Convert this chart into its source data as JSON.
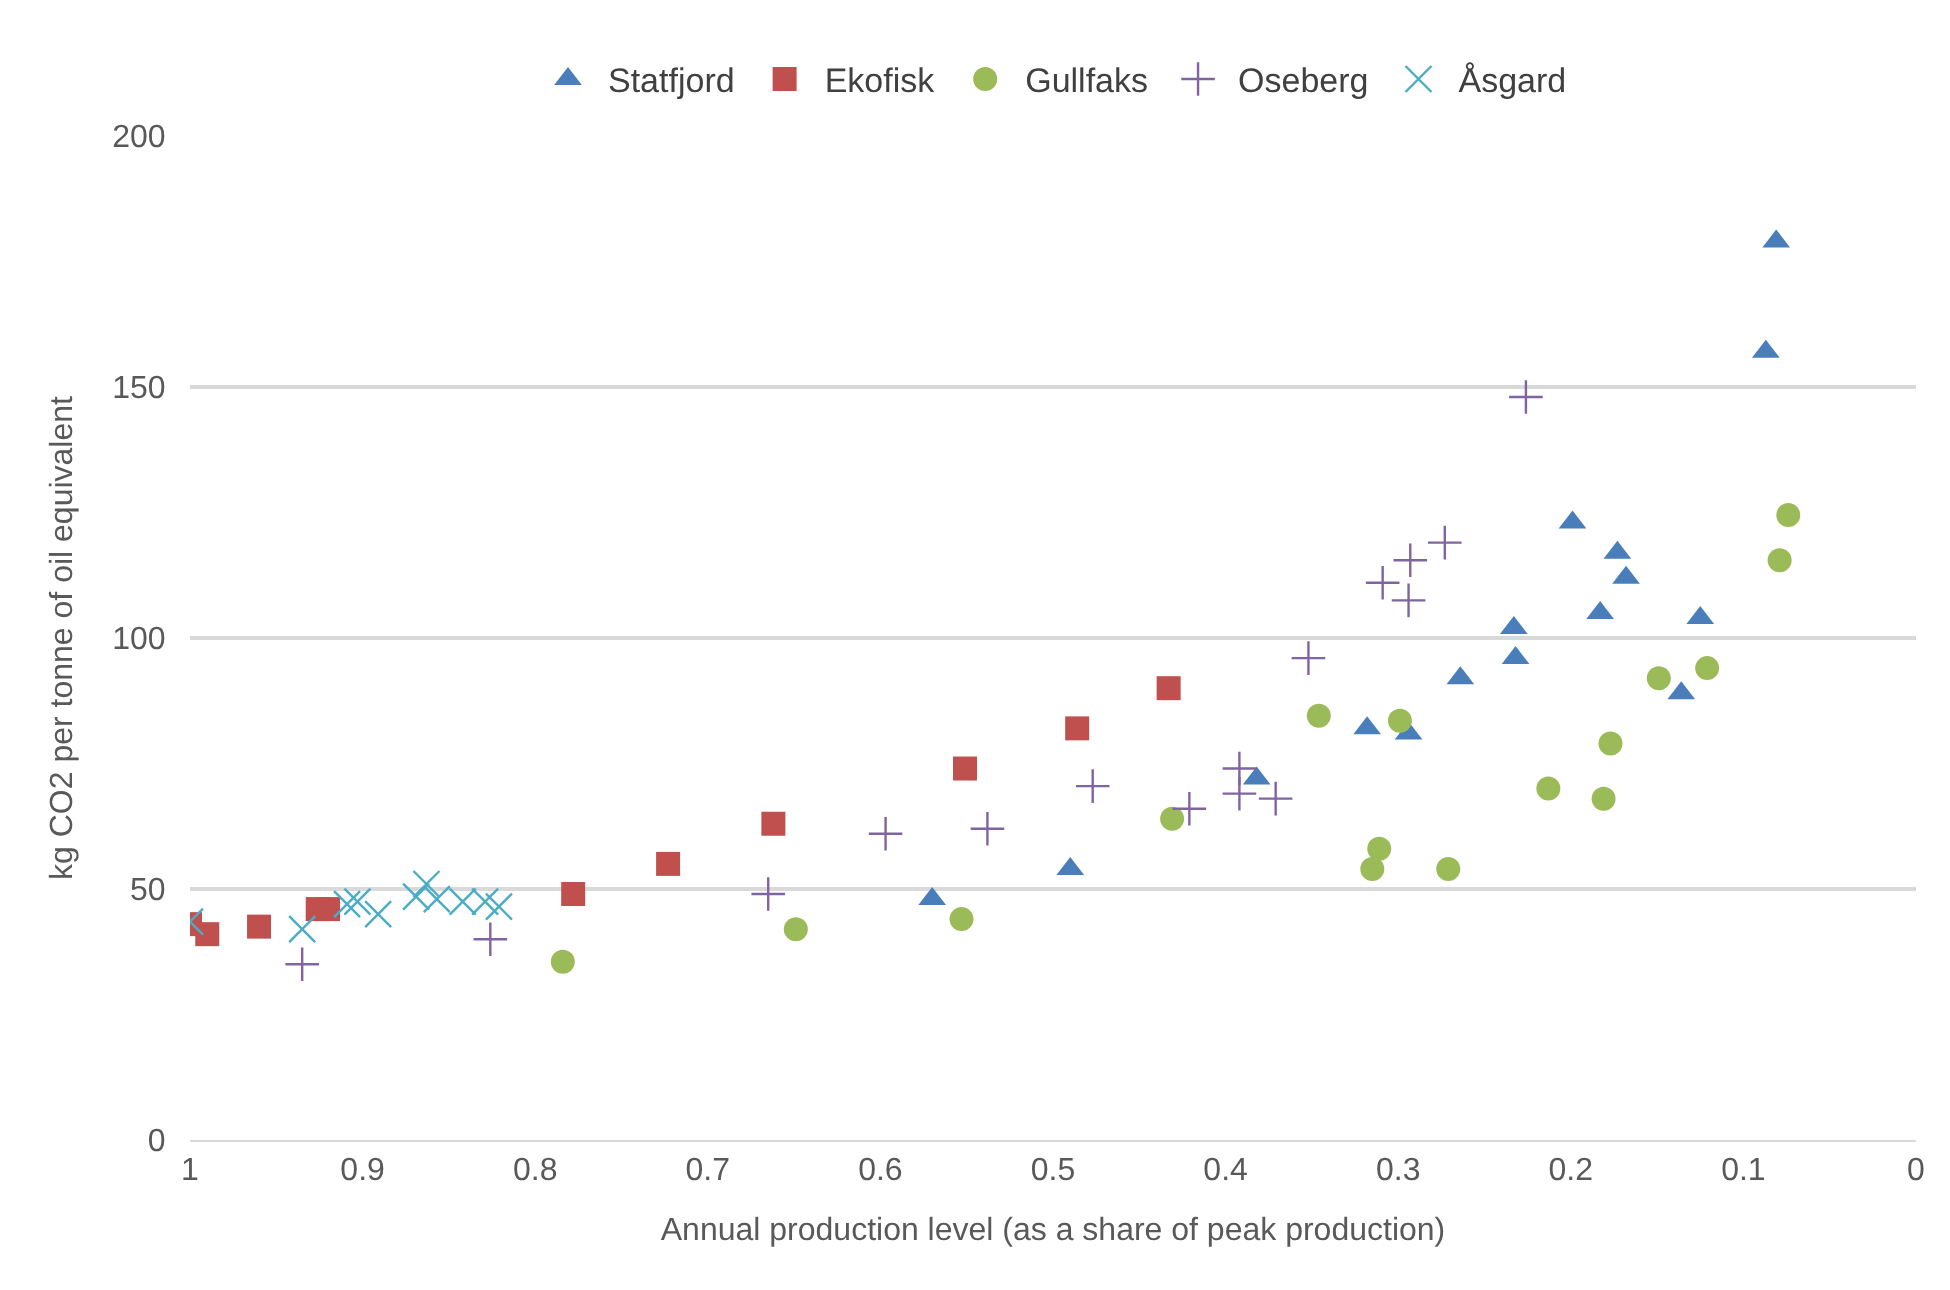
{
  "chart_data": {
    "type": "scatter",
    "xlabel": "Annual production level (as a share of peak production)",
    "ylabel": "kg CO2 per tonne of oil equivalent",
    "xlim": [
      1,
      0
    ],
    "xticks": [
      1,
      0.9,
      0.8,
      0.7,
      0.6,
      0.5,
      0.4,
      0.3,
      0.2,
      0.1,
      0
    ],
    "ylim": [
      0,
      200
    ],
    "yticks": [
      0,
      50,
      100,
      150,
      200
    ],
    "grid": "y",
    "legend": "top",
    "series": [
      {
        "name": "Statfjord",
        "color": "#4a7ebb",
        "marker": "triangle",
        "x": [
          0.57,
          0.49,
          0.382,
          0.318,
          0.294,
          0.264,
          0.232,
          0.233,
          0.199,
          0.183,
          0.173,
          0.168,
          0.136,
          0.125,
          0.087,
          0.081
        ],
        "values": [
          48,
          54,
          72,
          82,
          81,
          92,
          96,
          102,
          123,
          105,
          117,
          112,
          89,
          104,
          157,
          179
        ]
      },
      {
        "name": "Ekofisk",
        "color": "#c0504d",
        "marker": "square",
        "x": [
          1.0,
          0.99,
          0.96,
          0.926,
          0.92,
          0.778,
          0.723,
          0.662,
          0.551,
          0.486,
          0.433
        ],
        "values": [
          43,
          41,
          42.5,
          46,
          46,
          49,
          55,
          63,
          74,
          82,
          90
        ]
      },
      {
        "name": "Gullfaks",
        "color": "#9bbb59",
        "marker": "circle",
        "x": [
          0.784,
          0.649,
          0.553,
          0.431,
          0.346,
          0.299,
          0.311,
          0.315,
          0.271,
          0.213,
          0.181,
          0.177,
          0.149,
          0.121,
          0.079,
          0.074
        ],
        "values": [
          35.5,
          42,
          44,
          64,
          84.5,
          83.5,
          58,
          54,
          54,
          70,
          68,
          79,
          92,
          94,
          115.5,
          124.5
        ]
      },
      {
        "name": "Oseberg",
        "color": "#8064a2",
        "marker": "cross",
        "x": [
          0.935,
          0.826,
          0.665,
          0.597,
          0.538,
          0.477,
          0.421,
          0.392,
          0.392,
          0.371,
          0.352,
          0.309,
          0.293,
          0.294,
          0.273,
          0.226
        ],
        "values": [
          35,
          40,
          49,
          61,
          62,
          70.5,
          66,
          74,
          69,
          68,
          96,
          111,
          115.5,
          107.5,
          119,
          148
        ]
      },
      {
        "name": "Åsgard",
        "color": "#4bacc6",
        "marker": "x",
        "x": [
          1.0,
          0.935,
          0.909,
          0.903,
          0.891,
          0.869,
          0.863,
          0.857,
          0.842,
          0.829,
          0.821
        ],
        "values": [
          43.5,
          42,
          47,
          47.5,
          45,
          48.5,
          51,
          48,
          47.5,
          47.5,
          46.5
        ]
      }
    ]
  }
}
